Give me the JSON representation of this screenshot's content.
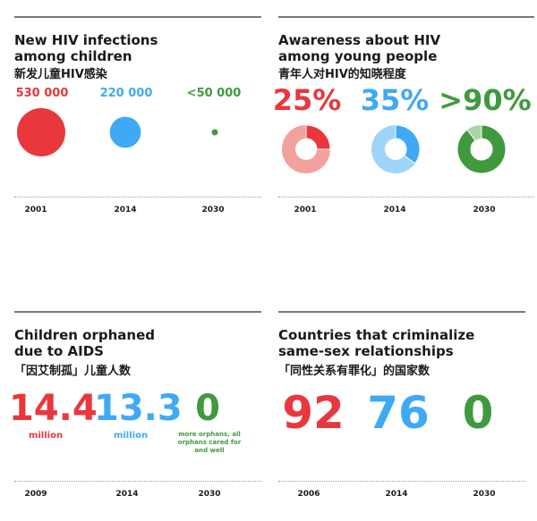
{
  "colors": {
    "red": "#e8383d",
    "red_light": "#f2a19d",
    "blue": "#3fa9f5",
    "blue_light": "#9ed4fa",
    "green": "#3f9a3f",
    "green_light": "#a9d3a4"
  },
  "chart_data": [
    {
      "type": "bubble",
      "title": "New HIV infections among children",
      "title_line1": "New HIV infections",
      "title_line2": "among children",
      "title_cn": "新发儿童HIV感染",
      "categories": [
        "2001",
        "2014",
        "2030"
      ],
      "values": [
        530000,
        220000,
        50000
      ],
      "labels": [
        "530 000",
        "220 000",
        "<50 000"
      ]
    },
    {
      "type": "pie",
      "title": "Awareness about HIV among young people",
      "title_line1": "Awareness about HIV",
      "title_line2": "among young people",
      "title_cn": "青年人对HIV的知晓程度",
      "categories": [
        "2001",
        "2014",
        "2030"
      ],
      "values": [
        25,
        35,
        90
      ],
      "labels": [
        "25%",
        "35%",
        ">90%"
      ]
    },
    {
      "type": "table",
      "title": "Children orphaned due to AIDS",
      "title_line1": "Children orphaned",
      "title_line2": "due to AIDS",
      "title_cn": "「因艾制孤」儿童人数",
      "categories": [
        "2009",
        "2014",
        "2030"
      ],
      "values": [
        14.4,
        13.3,
        0
      ],
      "labels": [
        "14.4",
        "13.3",
        "0"
      ],
      "units": [
        "million",
        "million",
        ""
      ],
      "note": "more orphans, all orphans cared for and well"
    },
    {
      "type": "table",
      "title": "Countries that criminalize same-sex relationships",
      "title_line1": "Countries that criminalize",
      "title_line2": "same-sex relationships",
      "title_cn": "「同性关系有罪化」的国家数",
      "categories": [
        "2006",
        "2014",
        "2030"
      ],
      "values": [
        92,
        76,
        0
      ],
      "labels": [
        "92",
        "76",
        "0"
      ]
    }
  ]
}
